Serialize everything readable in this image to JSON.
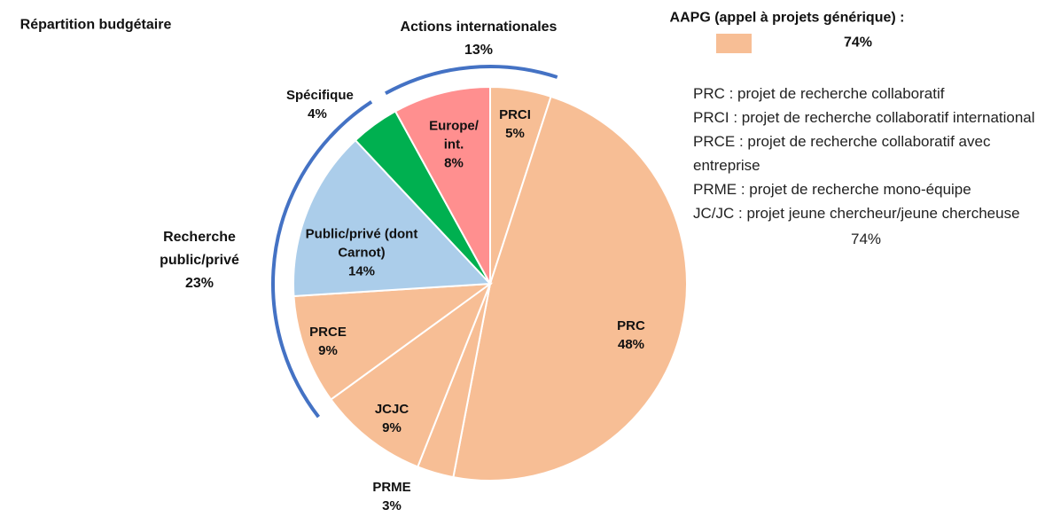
{
  "chart_data": {
    "type": "pie",
    "title": "Répartition budgétaire",
    "categories": [
      "PRCI",
      "PRC",
      "PRME",
      "JCJC",
      "PRCE",
      "Public/privé (dont Carnot)",
      "Spécifique",
      "Europe/ int."
    ],
    "values": [
      5,
      48,
      3,
      9,
      9,
      14,
      4,
      8
    ],
    "value_labels": [
      "5%",
      "48%",
      "3%",
      "9%",
      "9%",
      "14%",
      "4%",
      "8%"
    ],
    "colors": [
      "#F7BE95",
      "#F7BE95",
      "#F7BE95",
      "#F7BE95",
      "#F7BE95",
      "#ABCDEA",
      "#00B050",
      "#FF8F8F"
    ],
    "groups": [
      {
        "name": "Actions internationales",
        "value": 13,
        "value_label": "13%"
      },
      {
        "name": "Recherche public/privé",
        "value": 23,
        "value_label": "23%"
      }
    ],
    "legend": {
      "name": "AAPG (appel à projets générique) :",
      "color": "#F7BE95",
      "value_label": "74%"
    },
    "glossary": [
      "PRC : projet de recherche collaboratif",
      "PRCI : projet de recherche collaboratif international",
      "PRCE : projet de recherche collaboratif avec entreprise",
      "PRME : projet de recherche mono-équipe",
      "JC/JC : projet jeune chercheur/jeune chercheuse"
    ],
    "glossary_total": "74%"
  }
}
